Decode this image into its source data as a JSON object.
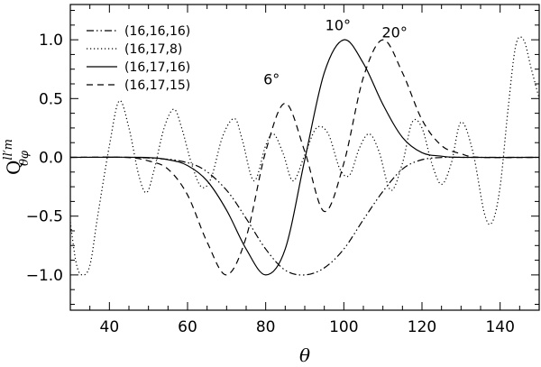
{
  "chart_data": {
    "type": "line",
    "xlabel": "θ",
    "ylabel_main": "Q",
    "ylabel_sup": "ll′m",
    "ylabel_sub": "θφ",
    "xlim": [
      30,
      150
    ],
    "ylim": [
      -1.3,
      1.3
    ],
    "xticks": [
      40,
      60,
      80,
      100,
      120,
      140
    ],
    "xtick_labels": [
      "40",
      "60",
      "80",
      "100",
      "120",
      "140"
    ],
    "yticks": [
      -1.0,
      -0.5,
      0.0,
      0.5,
      1.0
    ],
    "ytick_labels": [
      "−1.0",
      "−0.5",
      "0.0",
      "0.5",
      "1.0"
    ],
    "grid": false,
    "legend_position": "top-left",
    "series": [
      {
        "name": "(16,16,16)",
        "style": "dash-dot-dot",
        "x": [
          30,
          45,
          52,
          58,
          64,
          70,
          75,
          80,
          85,
          90,
          95,
          100,
          105,
          110,
          115,
          120,
          126,
          132,
          150
        ],
        "y": [
          0,
          0,
          -0.01,
          -0.03,
          -0.1,
          -0.28,
          -0.52,
          -0.78,
          -0.96,
          -1.0,
          -0.94,
          -0.78,
          -0.53,
          -0.29,
          -0.1,
          -0.02,
          0,
          0,
          0
        ]
      },
      {
        "name": "(16,17,8)",
        "style": "dotted",
        "x": [
          30,
          31.5,
          33,
          35,
          37,
          40,
          42.5,
          45,
          47.5,
          49.5,
          51.5,
          54,
          56.5,
          58.5,
          61,
          63.5,
          66,
          69,
          72,
          74,
          77,
          80,
          82,
          84.5,
          87,
          90,
          93,
          96,
          99,
          101.5,
          104,
          106.5,
          109,
          112,
          115,
          117.5,
          120,
          122.5,
          125,
          127.5,
          130,
          133,
          136,
          138,
          140,
          142,
          144,
          146,
          148,
          150
        ],
        "y": [
          -0.55,
          -0.9,
          -1.0,
          -0.92,
          -0.5,
          0.1,
          0.48,
          0.25,
          -0.15,
          -0.3,
          -0.1,
          0.25,
          0.41,
          0.25,
          -0.05,
          -0.25,
          -0.18,
          0.18,
          0.33,
          0.15,
          -0.2,
          0.1,
          0.2,
          0.03,
          -0.2,
          0.02,
          0.25,
          0.2,
          -0.1,
          -0.15,
          0.08,
          0.2,
          0.05,
          -0.28,
          -0.05,
          0.3,
          0.25,
          -0.05,
          -0.23,
          -0.05,
          0.3,
          0.05,
          -0.48,
          -0.55,
          -0.25,
          0.4,
          0.95,
          1.0,
          0.75,
          0.5
        ]
      },
      {
        "name": "(16,17,16)",
        "style": "solid",
        "x": [
          30,
          48,
          55,
          60,
          65,
          70,
          75,
          80,
          85,
          90,
          95,
          100,
          105,
          110,
          115,
          120,
          125,
          130,
          150
        ],
        "y": [
          0,
          0,
          -0.02,
          -0.07,
          -0.2,
          -0.45,
          -0.78,
          -1.0,
          -0.78,
          -0.02,
          0.72,
          1.0,
          0.8,
          0.45,
          0.17,
          0.04,
          0.01,
          0,
          0
        ]
      },
      {
        "name": "(16,17,15)",
        "style": "dashed",
        "x": [
          30,
          44,
          50,
          55,
          60,
          65,
          70,
          75,
          80,
          85,
          90,
          95,
          100,
          105,
          110,
          115,
          120,
          125,
          130,
          135,
          150
        ],
        "y": [
          0,
          0,
          -0.03,
          -0.1,
          -0.32,
          -0.72,
          -1.0,
          -0.68,
          0.05,
          0.46,
          0.05,
          -0.46,
          -0.05,
          0.68,
          1.0,
          0.72,
          0.32,
          0.1,
          0.03,
          0,
          0
        ]
      }
    ],
    "annotations": [
      {
        "text": "6°",
        "x": 81.5,
        "y": 0.62
      },
      {
        "text": "10°",
        "x": 98.5,
        "y": 1.08
      },
      {
        "text": "20°",
        "x": 113,
        "y": 1.02
      }
    ]
  }
}
